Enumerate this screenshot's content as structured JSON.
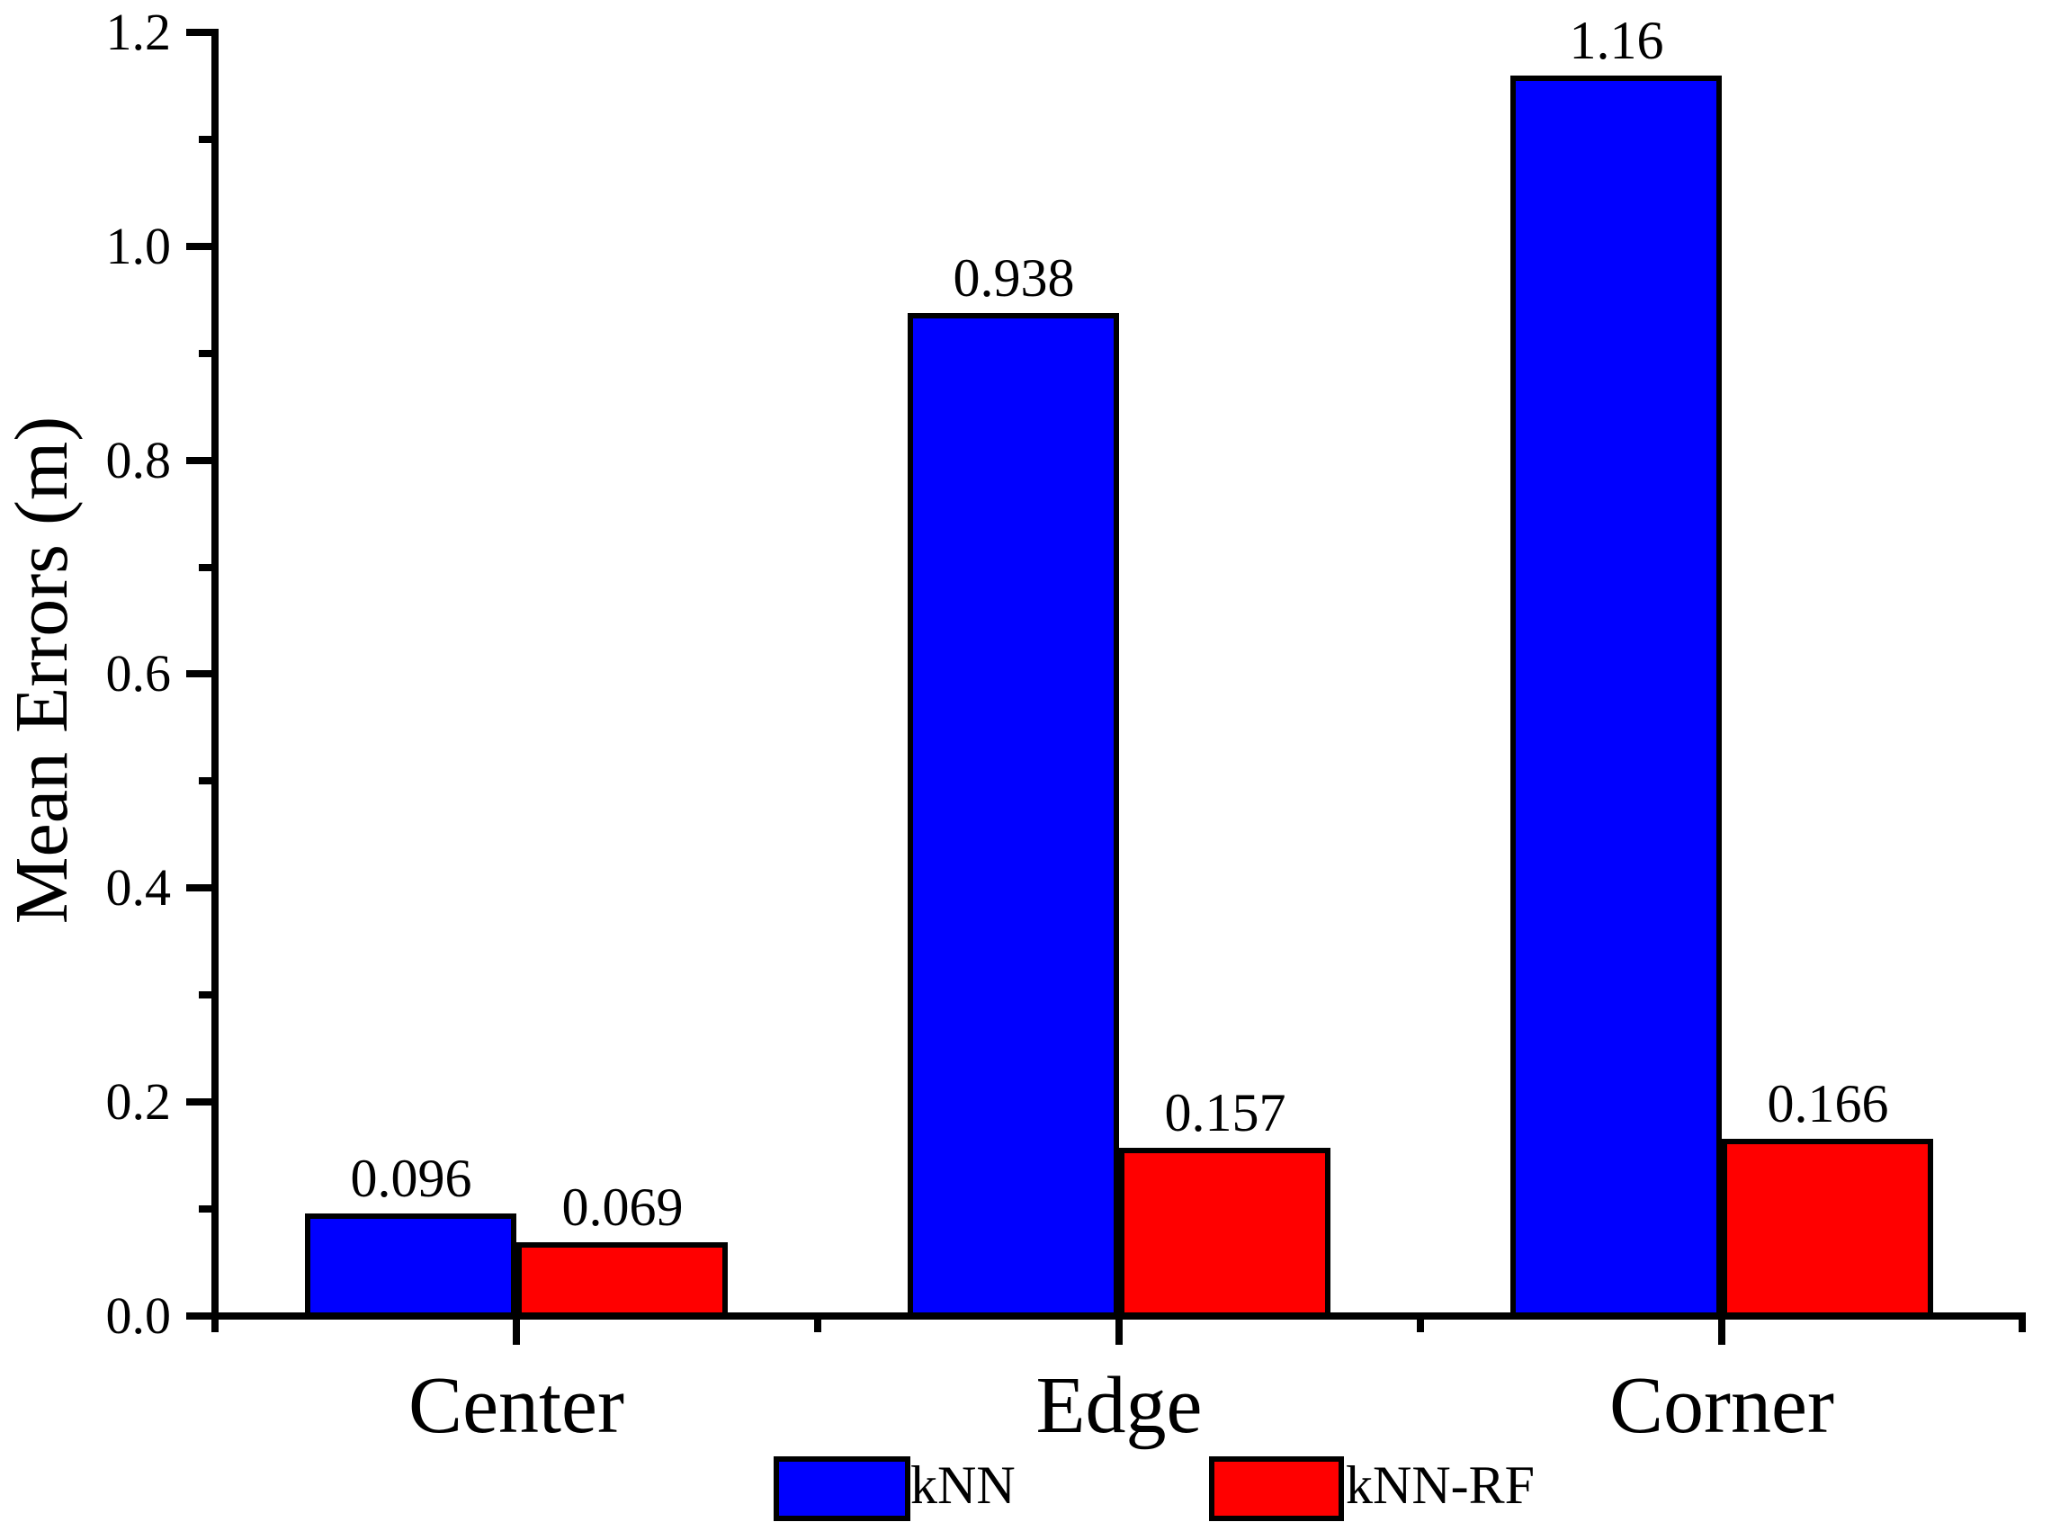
{
  "figure": {
    "background": "#ffffff",
    "axis_color": "#000000"
  },
  "chart_data": {
    "type": "bar",
    "title": "",
    "xlabel": "",
    "ylabel": "Mean Errors (m)",
    "categories": [
      "Center",
      "Edge",
      "Corner"
    ],
    "series": [
      {
        "name": "kNN",
        "color": "#0000ff",
        "values": [
          0.096,
          0.938,
          1.16
        ],
        "labels": [
          "0.096",
          "0.938",
          "1.16"
        ]
      },
      {
        "name": "kNN-RF",
        "color": "#ff0000",
        "values": [
          0.069,
          0.157,
          0.166
        ],
        "labels": [
          "0.069",
          "0.157",
          "0.166"
        ]
      }
    ],
    "ylim": [
      0.0,
      1.2
    ],
    "yticks": [
      "0.0",
      "0.2",
      "0.4",
      "0.6",
      "0.8",
      "1.0",
      "1.2"
    ],
    "ytick_step": 0.2,
    "minor_ytick_step": 0.1,
    "grid": false,
    "bar_outline": "#000000",
    "legend_position": "bottom"
  }
}
